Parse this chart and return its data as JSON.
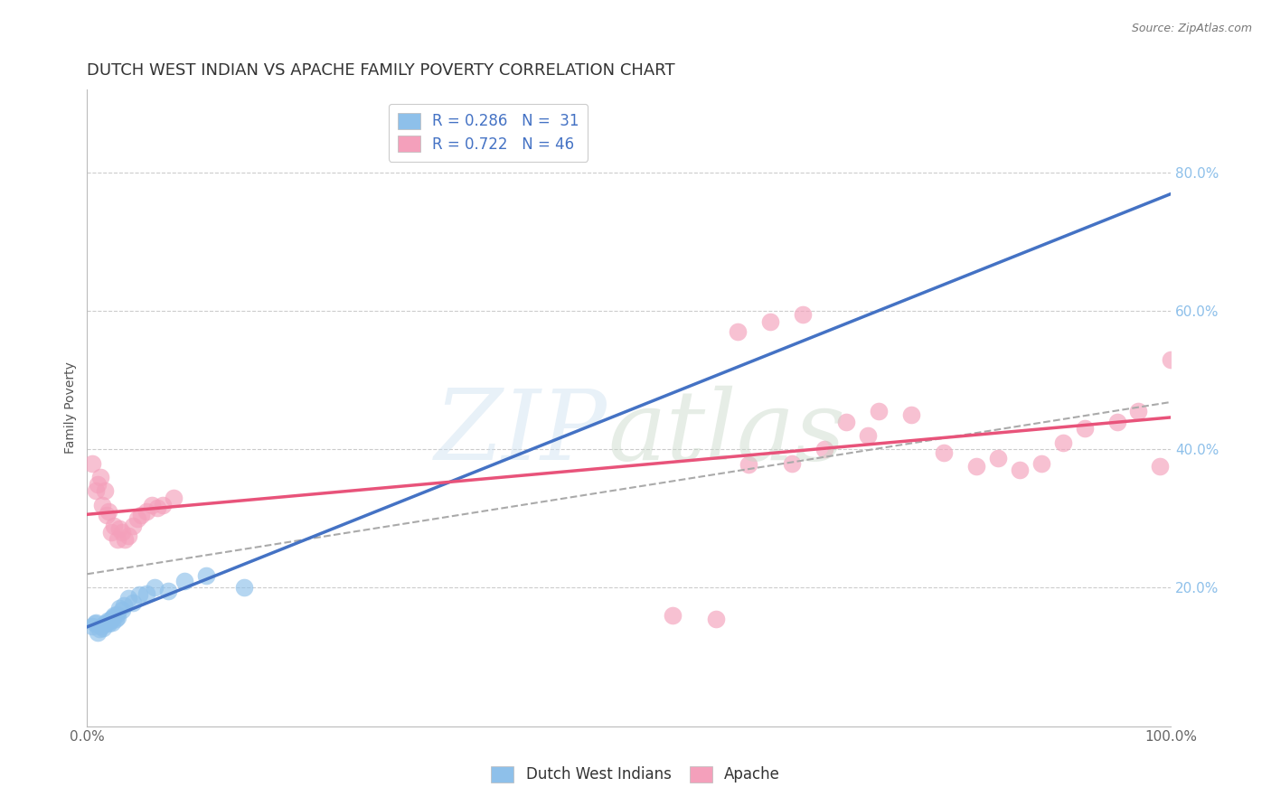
{
  "title": "DUTCH WEST INDIAN VS APACHE FAMILY POVERTY CORRELATION CHART",
  "source": "Source: ZipAtlas.com",
  "ylabel": "Family Poverty",
  "xlim": [
    0,
    1.0
  ],
  "ylim": [
    0,
    0.92
  ],
  "ytick_positions": [
    0.2,
    0.4,
    0.6,
    0.8
  ],
  "ytick_labels": [
    "20.0%",
    "40.0%",
    "60.0%",
    "80.0%"
  ],
  "xtick_positions": [
    0.0,
    0.1,
    0.2,
    0.3,
    0.4,
    0.5,
    0.6,
    0.7,
    0.8,
    0.9,
    1.0
  ],
  "xtick_labels": [
    "0.0%",
    "",
    "",
    "",
    "",
    "",
    "",
    "",
    "",
    "",
    "100.0%"
  ],
  "grid_color": "#cccccc",
  "background_color": "#ffffff",
  "color_blue": "#8ec0ea",
  "color_pink": "#f4a0bb",
  "line_blue": "#4472c4",
  "line_pink": "#e8537a",
  "line_dashed_color": "#aaaaaa",
  "legend_R1": "R = 0.286",
  "legend_N1": "N =  31",
  "legend_R2": "R = 0.722",
  "legend_N2": "N = 46",
  "dutch_x": [
    0.005,
    0.007,
    0.008,
    0.01,
    0.011,
    0.013,
    0.015,
    0.016,
    0.018,
    0.019,
    0.02,
    0.021,
    0.022,
    0.023,
    0.024,
    0.025,
    0.026,
    0.027,
    0.028,
    0.03,
    0.032,
    0.034,
    0.038,
    0.042,
    0.048,
    0.055,
    0.062,
    0.075,
    0.09,
    0.11,
    0.145
  ],
  "dutch_y": [
    0.145,
    0.148,
    0.15,
    0.135,
    0.14,
    0.145,
    0.142,
    0.148,
    0.15,
    0.152,
    0.148,
    0.152,
    0.155,
    0.15,
    0.158,
    0.16,
    0.155,
    0.162,
    0.158,
    0.17,
    0.168,
    0.175,
    0.185,
    0.178,
    0.19,
    0.192,
    0.2,
    0.195,
    0.21,
    0.218,
    0.2
  ],
  "apache_x": [
    0.005,
    0.008,
    0.01,
    0.012,
    0.014,
    0.016,
    0.018,
    0.02,
    0.022,
    0.025,
    0.028,
    0.03,
    0.032,
    0.035,
    0.038,
    0.042,
    0.046,
    0.05,
    0.055,
    0.06,
    0.065,
    0.07,
    0.08,
    0.6,
    0.63,
    0.66,
    0.7,
    0.73,
    0.76,
    0.79,
    0.82,
    0.84,
    0.86,
    0.88,
    0.9,
    0.92,
    0.95,
    0.97,
    0.99,
    1.0,
    0.54,
    0.58,
    0.61,
    0.65,
    0.68,
    0.72
  ],
  "apache_y": [
    0.38,
    0.34,
    0.35,
    0.36,
    0.32,
    0.34,
    0.305,
    0.31,
    0.28,
    0.29,
    0.27,
    0.285,
    0.28,
    0.27,
    0.275,
    0.29,
    0.3,
    0.305,
    0.31,
    0.32,
    0.315,
    0.32,
    0.33,
    0.57,
    0.585,
    0.595,
    0.44,
    0.455,
    0.45,
    0.395,
    0.375,
    0.388,
    0.37,
    0.38,
    0.41,
    0.43,
    0.44,
    0.455,
    0.375,
    0.53,
    0.16,
    0.155,
    0.378,
    0.38,
    0.4,
    0.42
  ],
  "title_fontsize": 13,
  "label_fontsize": 10,
  "tick_fontsize": 11,
  "legend_fontsize": 12
}
